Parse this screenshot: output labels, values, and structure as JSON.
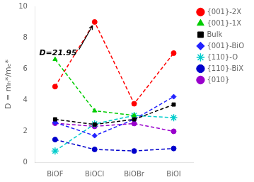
{
  "chart_data": {
    "type": "line",
    "categories": [
      "BiOF",
      "BiOCl",
      "BiOBr",
      "BiOI"
    ],
    "series": [
      {
        "name": "{001}-2X",
        "color": "#ff0000",
        "marker": "circle",
        "line_style": "dashed",
        "values": [
          4.85,
          9.0,
          3.75,
          7.0
        ]
      },
      {
        "name": "{001}-1X",
        "color": "#00cc00",
        "marker": "triangle",
        "line_style": "dashed",
        "values": [
          6.6,
          3.3,
          3.0,
          null
        ]
      },
      {
        "name": "Bulk",
        "color": "#000000",
        "marker": "square",
        "line_style": "dashed",
        "values": [
          2.75,
          2.42,
          2.75,
          3.7
        ]
      },
      {
        "name": "{001}-BiO",
        "color": "#2222ff",
        "marker": "diamond",
        "line_style": "dashed",
        "values": [
          2.55,
          1.7,
          2.75,
          4.2
        ]
      },
      {
        "name": "{110}-O",
        "color": "#00cccc",
        "marker": "star",
        "line_style": "dashed",
        "values": [
          0.72,
          2.45,
          3.0,
          2.85
        ]
      },
      {
        "name": "{110}-BiX",
        "color": "#0000cc",
        "marker": "circle",
        "line_style": "dashed",
        "values": [
          1.45,
          0.82,
          0.72,
          0.88
        ]
      },
      {
        "name": "{010}",
        "color": "#9900cc",
        "marker": "circle",
        "line_style": "dashed",
        "values": [
          2.5,
          2.3,
          2.48,
          1.98
        ]
      }
    ],
    "y_label": "D = mₕ*/mₑ*",
    "ylim": [
      0,
      10
    ],
    "yticks": [
      0,
      2,
      4,
      6,
      8,
      10
    ],
    "grid": false,
    "legend": "upper right",
    "annotations": [
      {
        "text": "D=21.95",
        "series": "{001}-2X",
        "category": "BiOCl"
      }
    ]
  }
}
